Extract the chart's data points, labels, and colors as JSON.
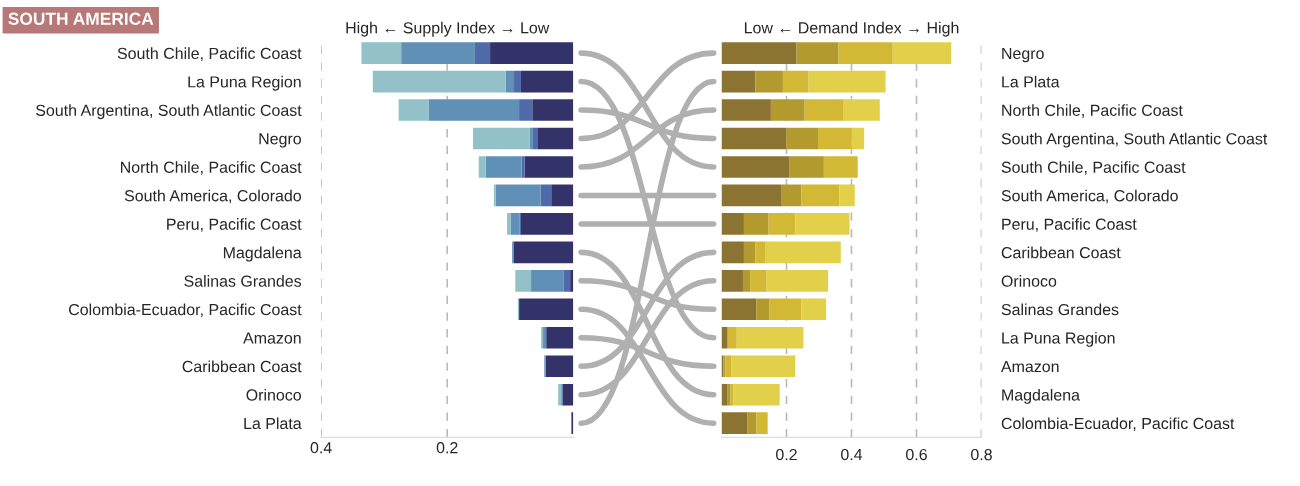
{
  "chart_data": [
    {
      "type": "bar",
      "orientation": "horizontal",
      "stacked": true,
      "title": "SOUTH AMERICA",
      "xlabel": "High ← Supply Index → Low",
      "grid": "x",
      "xlim": [
        0.4,
        0
      ],
      "xticks": [
        0.2,
        0.4
      ],
      "categories": [
        "South Chile, Pacific Coast",
        "La Puna Region",
        "South Argentina, South Atlantic Coast",
        "Negro",
        "North Chile, Pacific Coast",
        "South America, Colorado",
        "Peru, Pacific Coast",
        "Magdalena",
        "Salinas Grandes",
        "Colombia-Ecuador, Pacific Coast",
        "Amazon",
        "Caribbean Coast",
        "Orinoco",
        "La Plata"
      ],
      "series": [
        {
          "color": "#333269",
          "values": [
            0.132,
            0.083,
            0.065,
            0.056,
            0.077,
            0.035,
            0.083,
            0.095,
            0.005,
            0.086,
            0.043,
            0.044,
            0.017,
            0.003
          ]
        },
        {
          "color": "#4e6aa8",
          "values": [
            0.024,
            0.011,
            0.021,
            0.008,
            0.005,
            0.017,
            0.002,
            0,
            0.01,
            0,
            0,
            0,
            0.002,
            0
          ]
        },
        {
          "color": "#6090b5",
          "values": [
            0.117,
            0.013,
            0.143,
            0.005,
            0.057,
            0.071,
            0.014,
            0.002,
            0.052,
            0,
            0.005,
            0.002,
            0,
            0
          ]
        },
        {
          "color": "#92c1c7",
          "values": [
            0.063,
            0.211,
            0.048,
            0.09,
            0.011,
            0.003,
            0.006,
            0,
            0.025,
            0.002,
            0.003,
            0,
            0.005,
            0
          ]
        }
      ]
    },
    {
      "type": "bar",
      "orientation": "horizontal",
      "stacked": true,
      "xlabel": "Low ← Demand Index → High",
      "grid": "x",
      "xlim": [
        0,
        0.8
      ],
      "xticks": [
        0.2,
        0.4,
        0.6,
        0.8
      ],
      "categories": [
        "Negro",
        "La Plata",
        "North Chile, Pacific Coast",
        "South Argentina, South Atlantic Coast",
        "South Chile, Pacific Coast",
        "South America, Colorado",
        "Peru, Pacific Coast",
        "Caribbean Coast",
        "Orinoco",
        "Salinas Grandes",
        "La Puna Region",
        "Amazon",
        "Magdalena",
        "Colombia-Ecuador, Pacific Coast"
      ],
      "series": [
        {
          "color": "#8b7332",
          "values": [
            0.231,
            0.104,
            0.152,
            0.199,
            0.208,
            0.183,
            0.069,
            0.069,
            0.066,
            0.107,
            0.019,
            0.006,
            0.019,
            0.079
          ]
        },
        {
          "color": "#b39a2e",
          "values": [
            0.129,
            0.085,
            0.104,
            0.098,
            0.107,
            0.063,
            0.076,
            0.035,
            0.022,
            0.041,
            0,
            0.006,
            0.009,
            0.028
          ]
        },
        {
          "color": "#d2b835",
          "values": [
            0.167,
            0.079,
            0.12,
            0.104,
            0.104,
            0.117,
            0.082,
            0.032,
            0.051,
            0.098,
            0.028,
            0.019,
            0.009,
            0.035
          ]
        },
        {
          "color": "#e2d04a",
          "values": [
            0.18,
            0.237,
            0.111,
            0.038,
            0,
            0.047,
            0.167,
            0.231,
            0.189,
            0.076,
            0.205,
            0.196,
            0.142,
            0
          ]
        }
      ]
    }
  ]
}
